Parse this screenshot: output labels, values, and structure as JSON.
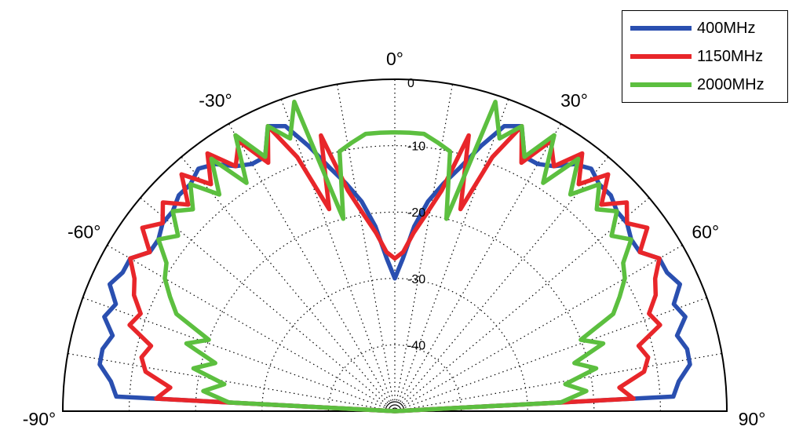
{
  "chart_data": {
    "type": "polar-line",
    "angle_unit": "degrees",
    "theta_range": [
      -90,
      90
    ],
    "r_range_db": [
      -50,
      0
    ],
    "rings_db": [
      0,
      -10,
      -20,
      -30,
      -40
    ],
    "ring_labels": [
      "0",
      "-10",
      "-20",
      "-30",
      "-40"
    ],
    "angle_labels": [
      {
        "deg": -90,
        "text": "-90°"
      },
      {
        "deg": -60,
        "text": "-60°"
      },
      {
        "deg": -30,
        "text": "-30°"
      },
      {
        "deg": 0,
        "text": "0°"
      },
      {
        "deg": 30,
        "text": "30°"
      },
      {
        "deg": 60,
        "text": "60°"
      },
      {
        "deg": 90,
        "text": "90°"
      }
    ],
    "spoke_step_deg": 10,
    "grid": true,
    "legend_position": "top-right",
    "series": [
      {
        "name": "400MHz",
        "color": "#2a4fb0",
        "theta_deg": [
          -90,
          -87,
          -84,
          -81,
          -78,
          -75,
          -72,
          -69,
          -66,
          -63,
          -60,
          -57,
          -54,
          -51,
          -48,
          -45,
          -42,
          -39,
          -36,
          -33,
          -30,
          -27,
          -24,
          -21,
          -18,
          -15,
          -12,
          -9,
          -6,
          -3,
          0,
          3,
          6,
          9,
          12,
          15,
          18,
          21,
          24,
          27,
          30,
          33,
          36,
          39,
          42,
          45,
          48,
          51,
          54,
          57,
          60,
          63,
          66,
          69,
          72,
          75,
          78,
          81,
          84,
          87,
          90
        ],
        "r_db": [
          -50,
          -8,
          -7,
          -5,
          -5,
          -6,
          -4,
          -5,
          -3,
          -4,
          -4,
          -6,
          -6,
          -5,
          -5,
          -4,
          -4,
          -3,
          -4,
          -6,
          -7,
          -7,
          -3,
          -4,
          -8,
          -12,
          -15,
          -18,
          -22,
          -27,
          -30,
          -27,
          -22,
          -18,
          -15,
          -12,
          -8,
          -4,
          -3,
          -7,
          -7,
          -6,
          -4,
          -3,
          -4,
          -4,
          -5,
          -5,
          -6,
          -6,
          -4,
          -4,
          -3,
          -5,
          -4,
          -6,
          -5,
          -5,
          -7,
          -8,
          -50
        ]
      },
      {
        "name": "1150MHz",
        "color": "#e8262a",
        "theta_deg": [
          -90,
          -87,
          -84,
          -81,
          -78,
          -75,
          -72,
          -69,
          -66,
          -63,
          -60,
          -57,
          -54,
          -51,
          -48,
          -45,
          -42,
          -39,
          -36,
          -33,
          -30,
          -27,
          -24,
          -21,
          -18,
          -15,
          -12,
          -9,
          -6,
          -3,
          0,
          3,
          6,
          9,
          12,
          15,
          18,
          21,
          24,
          27,
          30,
          33,
          36,
          39,
          42,
          45,
          48,
          51,
          54,
          57,
          60,
          63,
          66,
          69,
          72,
          75,
          78,
          81,
          84,
          87,
          90
        ],
        "r_db": [
          -50,
          -14,
          -16,
          -12,
          -11,
          -12,
          -8,
          -9,
          -7,
          -6,
          -4,
          -6,
          -3,
          -5,
          -3,
          -6,
          -2,
          -6,
          -2,
          -6,
          -3,
          -8,
          -3,
          -9,
          -18,
          -7,
          -16,
          -20,
          -23,
          -26,
          -27,
          -26,
          -23,
          -20,
          -16,
          -7,
          -18,
          -9,
          -3,
          -8,
          -3,
          -6,
          -2,
          -6,
          -2,
          -6,
          -3,
          -5,
          -3,
          -6,
          -4,
          -6,
          -7,
          -9,
          -8,
          -12,
          -11,
          -12,
          -16,
          -14,
          -50
        ]
      },
      {
        "name": "2000MHz",
        "color": "#5cbf3f",
        "theta_deg": [
          -90,
          -87,
          -84,
          -81,
          -78,
          -75,
          -72,
          -69,
          -66,
          -63,
          -60,
          -57,
          -54,
          -51,
          -48,
          -45,
          -42,
          -39,
          -36,
          -33,
          -30,
          -27,
          -24,
          -21,
          -18,
          -15,
          -12,
          -9,
          -6,
          -3,
          0,
          3,
          6,
          9,
          12,
          15,
          18,
          21,
          24,
          27,
          30,
          33,
          36,
          39,
          42,
          45,
          48,
          51,
          54,
          57,
          60,
          63,
          66,
          69,
          72,
          75,
          78,
          81,
          84,
          87,
          90
        ],
        "r_db": [
          -50,
          -25,
          -21,
          -24,
          -19,
          -22,
          -17,
          -20,
          -14,
          -12,
          -10,
          -9,
          -6,
          -8,
          -5,
          -7,
          -4,
          -8,
          -3,
          -9,
          -2,
          -7,
          -3,
          -6,
          -1,
          -20,
          -10,
          -9,
          -8,
          -8,
          -8,
          -8,
          -8,
          -9,
          -10,
          -20,
          -1,
          -6,
          -3,
          -7,
          -2,
          -9,
          -3,
          -8,
          -4,
          -7,
          -5,
          -8,
          -6,
          -9,
          -10,
          -12,
          -14,
          -20,
          -17,
          -22,
          -19,
          -24,
          -21,
          -25,
          -50
        ]
      }
    ]
  }
}
